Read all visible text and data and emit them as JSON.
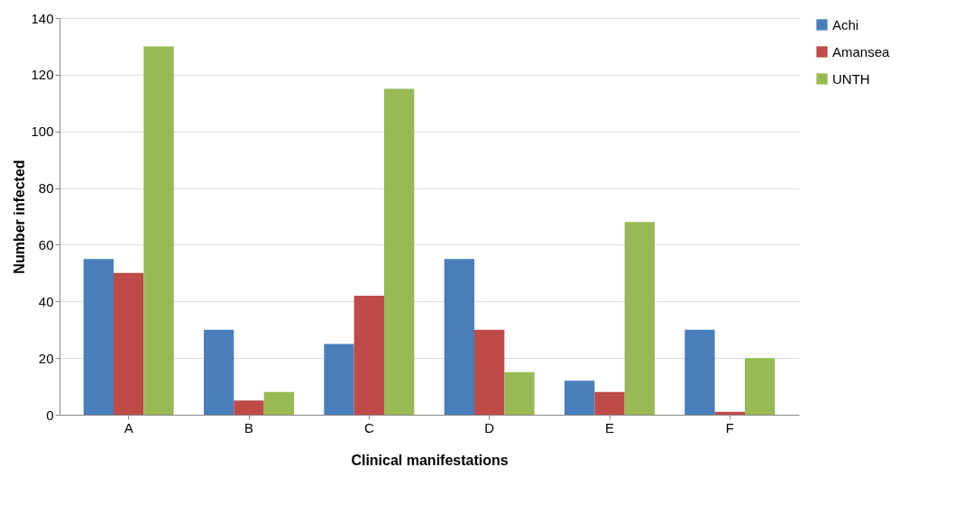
{
  "chart_data": {
    "type": "bar",
    "xlabel": "Clinical manifestations",
    "ylabel": "Number infected",
    "categories": [
      "A",
      "B",
      "C",
      "D",
      "E",
      "F"
    ],
    "series": [
      {
        "name": "Achi",
        "color": "#4a7ebb",
        "values": [
          55,
          30,
          25,
          55,
          12,
          30
        ]
      },
      {
        "name": "Amansea",
        "color": "#be4b48",
        "values": [
          50,
          5,
          42,
          30,
          8,
          1
        ]
      },
      {
        "name": "UNTH",
        "color": "#98b954",
        "values": [
          130,
          8,
          115,
          15,
          68,
          20
        ]
      }
    ],
    "ylim": [
      0,
      140
    ],
    "yticks": [
      0,
      20,
      40,
      60,
      80,
      100,
      120,
      140
    ],
    "grid": "y",
    "legend": "right"
  }
}
